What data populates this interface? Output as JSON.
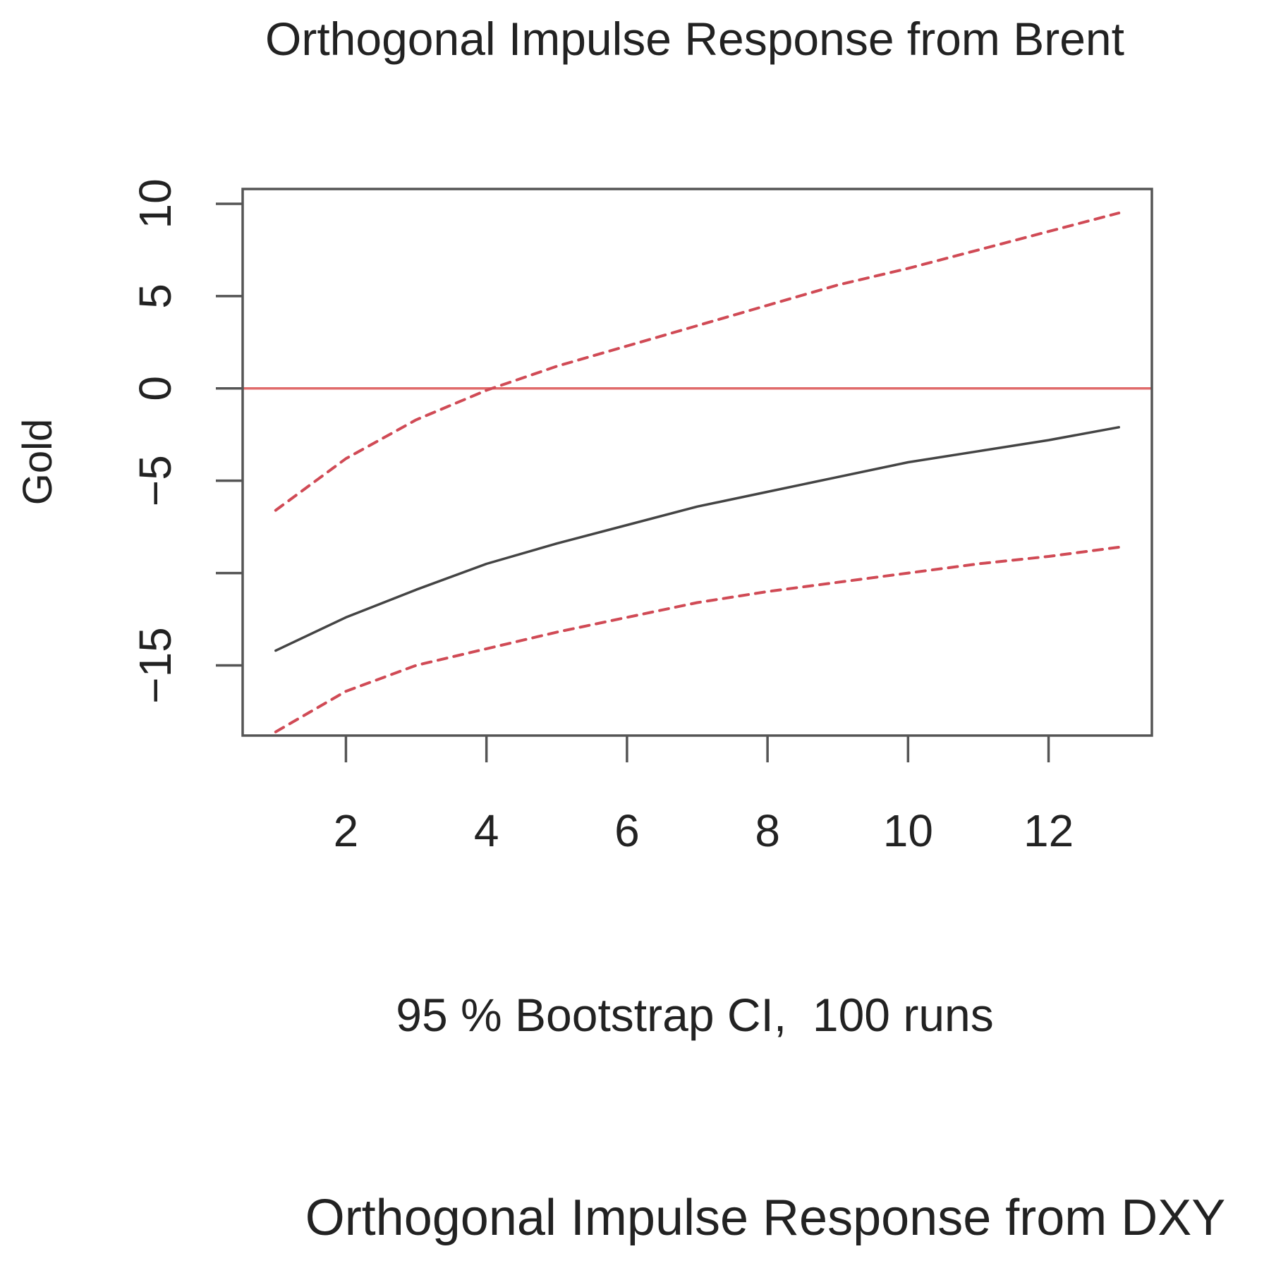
{
  "chart_data": {
    "type": "line",
    "title": "Orthogonal Impulse Response from Brent",
    "xlabel": "95 % Bootstrap CI,  100 runs",
    "ylabel": "Gold",
    "xlim": [
      1,
      13
    ],
    "ylim": [
      -18.8,
      10.8
    ],
    "x_ticks": [
      2,
      4,
      6,
      8,
      10,
      12
    ],
    "y_ticks": [
      10,
      5,
      0,
      -5,
      -10,
      -15
    ],
    "y_tick_labels": [
      "10",
      "5",
      "0",
      "−5",
      "",
      "−15"
    ],
    "x": [
      1,
      2,
      3,
      4,
      5,
      6,
      7,
      8,
      9,
      10,
      11,
      12,
      13
    ],
    "series": [
      {
        "role": "response",
        "color": "#444444",
        "style": "solid",
        "values": [
          -14.2,
          -12.4,
          -10.9,
          -9.5,
          -8.4,
          -7.4,
          -6.4,
          -5.6,
          -4.8,
          -4.0,
          -3.4,
          -2.8,
          -2.1
        ]
      },
      {
        "role": "upper-ci",
        "color": "#d04a55",
        "style": "dashed",
        "values": [
          -6.6,
          -3.8,
          -1.7,
          -0.1,
          1.2,
          2.3,
          3.4,
          4.5,
          5.6,
          6.5,
          7.5,
          8.5,
          9.5
        ]
      },
      {
        "role": "lower-ci",
        "color": "#d04a55",
        "style": "dashed",
        "values": [
          -18.6,
          -16.4,
          -15.0,
          -14.1,
          -13.2,
          -12.4,
          -11.6,
          -11.0,
          -10.5,
          -10.0,
          -9.5,
          -9.1,
          -8.6
        ]
      }
    ],
    "reference_line": {
      "y": 0,
      "color": "#e06b6b"
    },
    "grid": false,
    "legend": "none"
  },
  "second_panel": {
    "title": "Orthogonal Impulse Response from DXY"
  }
}
